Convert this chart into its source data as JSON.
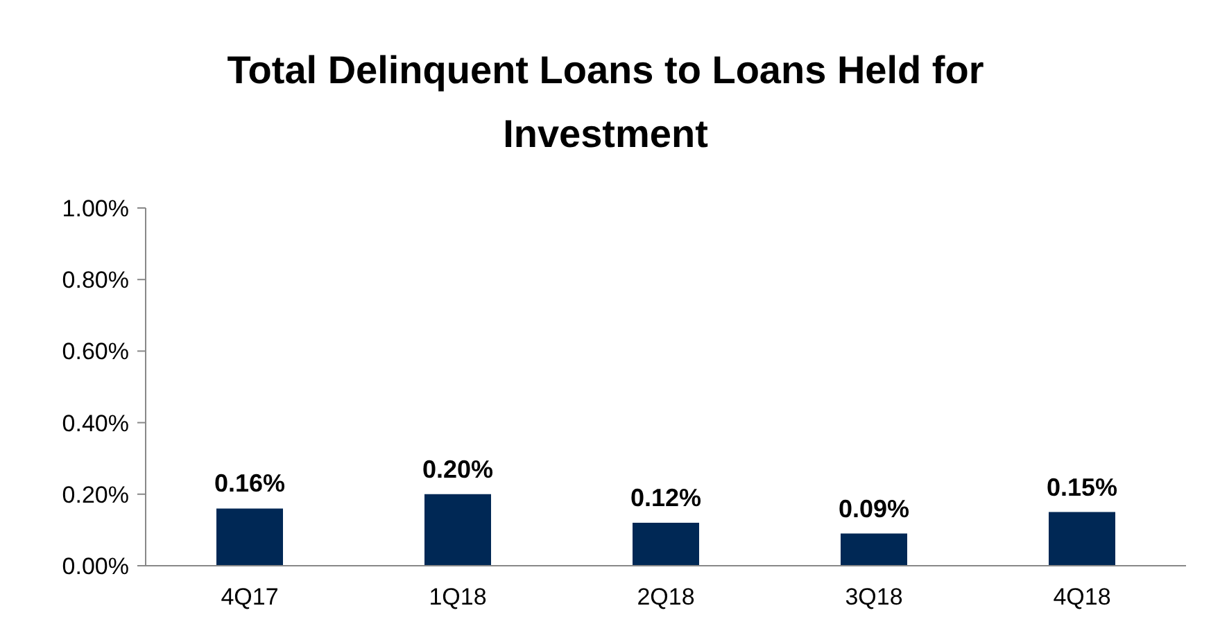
{
  "chart_data": {
    "type": "bar",
    "title": "Total Delinquent Loans to Loans Held for Investment",
    "categories": [
      "4Q17",
      "1Q18",
      "2Q18",
      "3Q18",
      "4Q18"
    ],
    "values": [
      0.16,
      0.2,
      0.12,
      0.09,
      0.15
    ],
    "value_labels": [
      "0.16%",
      "0.20%",
      "0.12%",
      "0.09%",
      "0.15%"
    ],
    "color": "#002855",
    "ylim": [
      0,
      1
    ],
    "yticks": [
      {
        "value": 0,
        "label": "0.00%"
      },
      {
        "value": 0.2,
        "label": "0.20%"
      },
      {
        "value": 0.4,
        "label": "0.40%"
      },
      {
        "value": 0.6,
        "label": "0.60%"
      },
      {
        "value": 0.8,
        "label": "0.80%"
      },
      {
        "value": 1,
        "label": "1.00%"
      }
    ],
    "grid": false,
    "legend": false
  }
}
